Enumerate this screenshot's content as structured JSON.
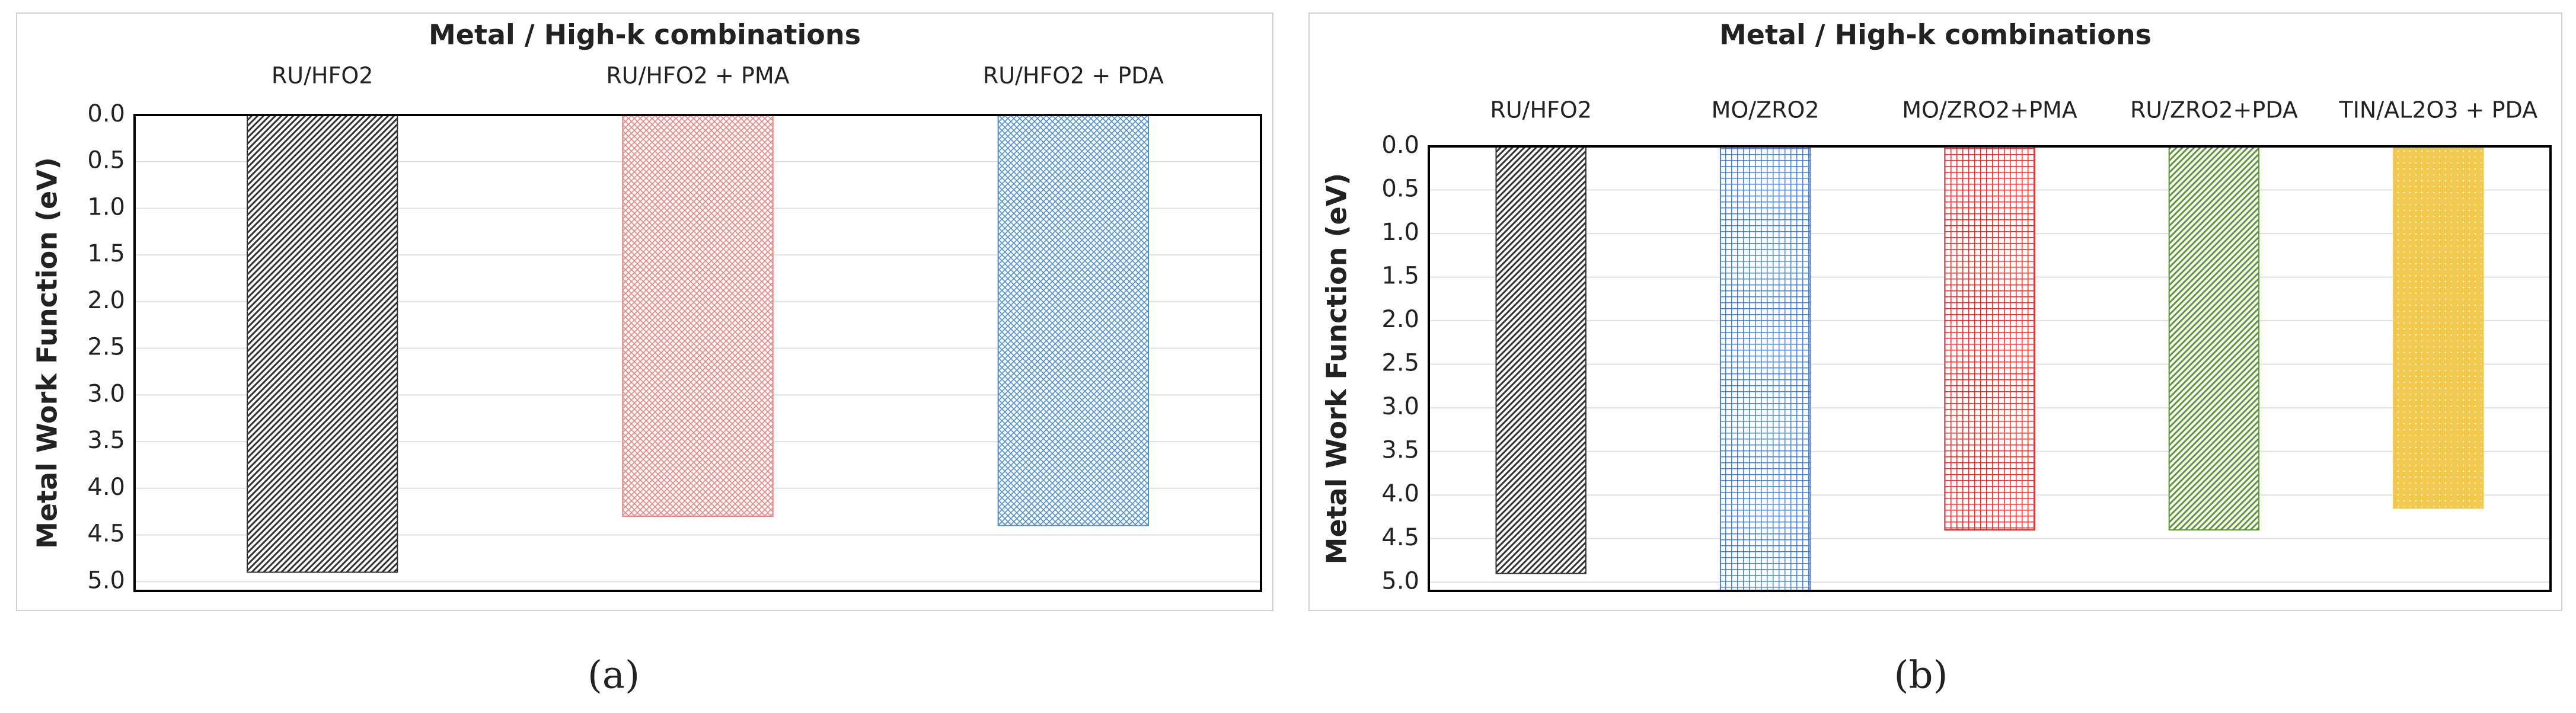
{
  "chart_data": [
    {
      "type": "bar",
      "title": "Metal / High-k combinations",
      "y_label": "Metal Work Function (eV)",
      "caption": "(a)",
      "categories": [
        "RU/HFO2",
        "RU/HFO2 + PMA",
        "RU/HFO2 + PDA"
      ],
      "values": [
        4.9,
        4.3,
        4.4
      ],
      "colors": [
        "#333333",
        "#f08080",
        "#4a90d9"
      ],
      "hatches": [
        "diagonal",
        "cross",
        "cross"
      ],
      "y_inverted": true,
      "grid": true,
      "ylim": [
        0,
        5.1
      ],
      "yticks": [
        {
          "value": 0,
          "label": "0.0"
        },
        {
          "value": 0.5,
          "label": "0.5"
        },
        {
          "value": 1,
          "label": "1.0"
        },
        {
          "value": 1.5,
          "label": "1.5"
        },
        {
          "value": 2,
          "label": "2.0"
        },
        {
          "value": 2.5,
          "label": "2.5"
        },
        {
          "value": 3,
          "label": "3.0"
        },
        {
          "value": 3.5,
          "label": "3.5"
        },
        {
          "value": 4,
          "label": "4.0"
        },
        {
          "value": 4.5,
          "label": "4.5"
        },
        {
          "value": 5,
          "label": "5.0"
        }
      ]
    },
    {
      "type": "bar",
      "title": "Metal / High-k combinations",
      "y_label": "Metal Work Function (eV)",
      "caption": "(b)",
      "categories": [
        "RU/HFO2",
        "MO/ZRO2",
        "MO/ZRO2+PMA",
        "RU/ZRO2+PDA",
        "TIN/AL2O3 + PDA"
      ],
      "values": [
        4.9,
        5.1,
        4.4,
        4.4,
        4.15
      ],
      "colors": [
        "#333333",
        "#4a7fd0",
        "#e03030",
        "#5a9a30",
        "#f2c94c"
      ],
      "hatches": [
        "diagonal",
        "grid",
        "grid",
        "diagonal",
        "dots"
      ],
      "y_inverted": true,
      "grid": true,
      "ylim": [
        0,
        5.1
      ],
      "yticks": [
        {
          "value": 0,
          "label": "0.0"
        },
        {
          "value": 0.5,
          "label": "0.5"
        },
        {
          "value": 1,
          "label": "1.0"
        },
        {
          "value": 1.5,
          "label": "1.5"
        },
        {
          "value": 2,
          "label": "2.0"
        },
        {
          "value": 2.5,
          "label": "2.5"
        },
        {
          "value": 3,
          "label": "3.0"
        },
        {
          "value": 3.5,
          "label": "3.5"
        },
        {
          "value": 4,
          "label": "4.0"
        },
        {
          "value": 4.5,
          "label": "4.5"
        },
        {
          "value": 5,
          "label": "5.0"
        }
      ]
    }
  ]
}
